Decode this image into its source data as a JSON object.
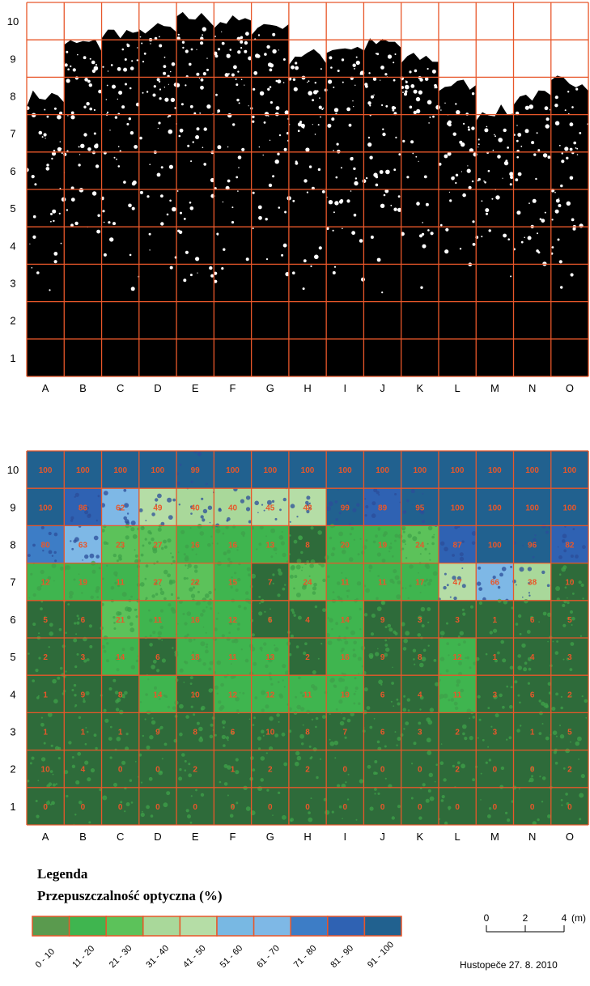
{
  "chart_data": [
    {
      "type": "image-grid",
      "columns": [
        "A",
        "B",
        "C",
        "D",
        "E",
        "F",
        "G",
        "H",
        "I",
        "J",
        "K",
        "L",
        "M",
        "N",
        "O"
      ],
      "rows": [
        "1",
        "2",
        "3",
        "4",
        "5",
        "6",
        "7",
        "8",
        "9",
        "10"
      ],
      "grid_color": "#e8572a",
      "canopy_top_row_by_column": [
        7.5,
        8.9,
        9.2,
        9.3,
        9.6,
        9.5,
        9.4,
        8.6,
        8.8,
        8.9,
        8.5,
        7.8,
        7.1,
        7.5,
        7.9
      ]
    },
    {
      "type": "heatmap",
      "columns": [
        "A",
        "B",
        "C",
        "D",
        "E",
        "F",
        "G",
        "H",
        "I",
        "J",
        "K",
        "L",
        "M",
        "N",
        "O"
      ],
      "rows": [
        "10",
        "9",
        "8",
        "7",
        "6",
        "5",
        "4",
        "3",
        "2",
        "1"
      ],
      "values": [
        [
          100,
          100,
          100,
          100,
          99,
          100,
          100,
          100,
          100,
          100,
          100,
          100,
          100,
          100,
          100
        ],
        [
          100,
          86,
          62,
          49,
          40,
          40,
          45,
          48,
          99,
          89,
          95,
          100,
          100,
          100,
          100
        ],
        [
          80,
          63,
          23,
          27,
          16,
          16,
          13,
          8,
          20,
          19,
          24,
          87,
          100,
          96,
          82
        ],
        [
          12,
          19,
          11,
          27,
          22,
          15,
          7,
          24,
          11,
          11,
          17,
          47,
          66,
          38,
          10
        ],
        [
          5,
          6,
          21,
          11,
          16,
          12,
          6,
          4,
          14,
          9,
          3,
          3,
          1,
          6,
          5
        ],
        [
          2,
          3,
          14,
          6,
          18,
          11,
          13,
          2,
          16,
          9,
          8,
          12,
          1,
          4,
          3
        ],
        [
          1,
          9,
          8,
          14,
          10,
          12,
          12,
          11,
          19,
          6,
          4,
          11,
          3,
          6,
          2
        ],
        [
          1,
          1,
          1,
          9,
          8,
          6,
          10,
          8,
          7,
          6,
          3,
          2,
          3,
          1,
          5
        ],
        [
          10,
          4,
          0,
          0,
          2,
          1,
          2,
          2,
          0,
          0,
          0,
          2,
          0,
          0,
          2
        ],
        [
          0,
          0,
          0,
          0,
          0,
          0,
          0,
          0,
          0,
          0,
          0,
          0,
          0,
          0,
          0
        ]
      ],
      "value_text_color": "#e8572a",
      "legend_title": "Legenda",
      "legend_subtitle": "Przepuszczalność optyczna (%)",
      "legend_classes": [
        {
          "label": "0 - 10",
          "color": "#2e6b3a"
        },
        {
          "label": "11 - 20",
          "color": "#3fb54f"
        },
        {
          "label": "21 - 30",
          "color": "#5cc25a"
        },
        {
          "label": "31 - 40",
          "color": "#a9d89a"
        },
        {
          "label": "41 - 50",
          "color": "#b5dda6"
        },
        {
          "label": "51 - 60",
          "color": "#78b8e3"
        },
        {
          "label": "61 - 70",
          "color": "#7eb8e6"
        },
        {
          "label": "71 - 80",
          "color": "#3d7dc6"
        },
        {
          "label": "81 - 90",
          "color": "#2f62b3"
        },
        {
          "label": "91 - 100",
          "color": "#21618f"
        }
      ],
      "legend_strip_colors": [
        "#5a9a4e",
        "#3fb54f",
        "#5cc25a",
        "#a9d89a",
        "#b5dda6",
        "#78b8e3",
        "#7eb8e6",
        "#3d7dc6",
        "#2f62b3",
        "#21618f"
      ],
      "scalebar": {
        "ticks": [
          "0",
          "2",
          "4"
        ],
        "unit": "(m)"
      },
      "caption": "Hustopeče 27. 8. 2010"
    }
  ]
}
